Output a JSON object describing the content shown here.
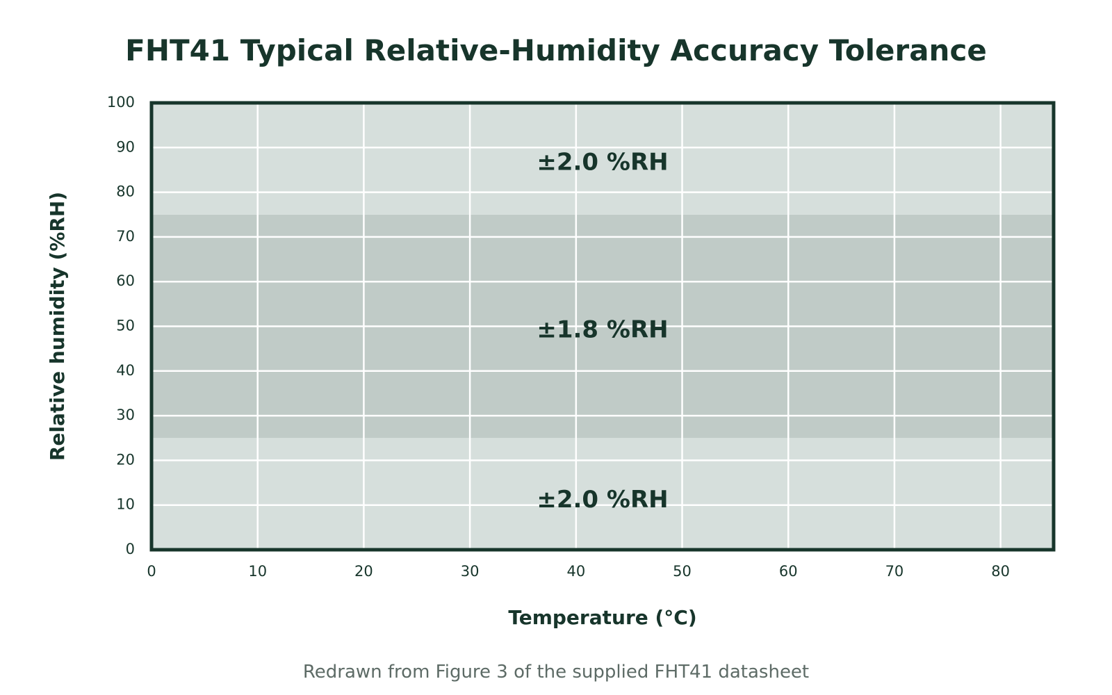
{
  "chart_data": {
    "type": "area",
    "title": "FHT41 Typical Relative-Humidity Accuracy Tolerance",
    "xlabel": "Temperature (°C)",
    "ylabel": "Relative humidity (%RH)",
    "xlim": [
      0,
      85
    ],
    "ylim": [
      0,
      100
    ],
    "x_ticks": [
      "0",
      "10",
      "20",
      "30",
      "40",
      "50",
      "60",
      "70",
      "80"
    ],
    "y_ticks": [
      "0",
      "10",
      "20",
      "30",
      "40",
      "50",
      "60",
      "70",
      "80",
      "90",
      "100"
    ],
    "grid": true,
    "bands": [
      {
        "rh_min": 0,
        "rh_max": 25,
        "tolerance": 2.0,
        "label": "±2.0 %RH",
        "label_rh": 11,
        "color": "#d6dfdc"
      },
      {
        "rh_min": 25,
        "rh_max": 75,
        "tolerance": 1.8,
        "label": "±1.8 %RH",
        "label_rh": 49,
        "color": "#c0cbc7"
      },
      {
        "rh_min": 75,
        "rh_max": 100,
        "tolerance": 2.0,
        "label": "±2.0 %RH",
        "label_rh": 86.5,
        "color": "#d6dfdc"
      }
    ],
    "frame_color": "#17352b",
    "grid_color": "#ffffff"
  },
  "caption": "Redrawn from Figure 3 of the supplied FHT41 datasheet"
}
